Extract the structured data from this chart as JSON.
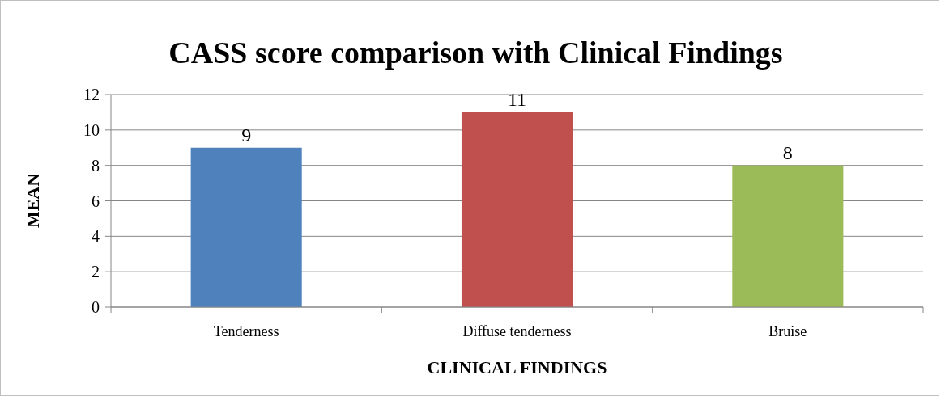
{
  "chart_data": {
    "type": "bar",
    "title": "CASS score comparison with Clinical Findings",
    "xlabel": "CLINICAL FINDINGS",
    "ylabel": "MEAN",
    "categories": [
      "Tenderness",
      "Diffuse tenderness",
      "Bruise"
    ],
    "values": [
      9,
      11,
      8
    ],
    "colors": [
      "#4f81bd",
      "#c0504d",
      "#9bbb59"
    ],
    "ylim": [
      0,
      12
    ],
    "yticks": [
      0,
      2,
      4,
      6,
      8,
      10,
      12
    ],
    "grid": "y",
    "data_labels": true
  }
}
